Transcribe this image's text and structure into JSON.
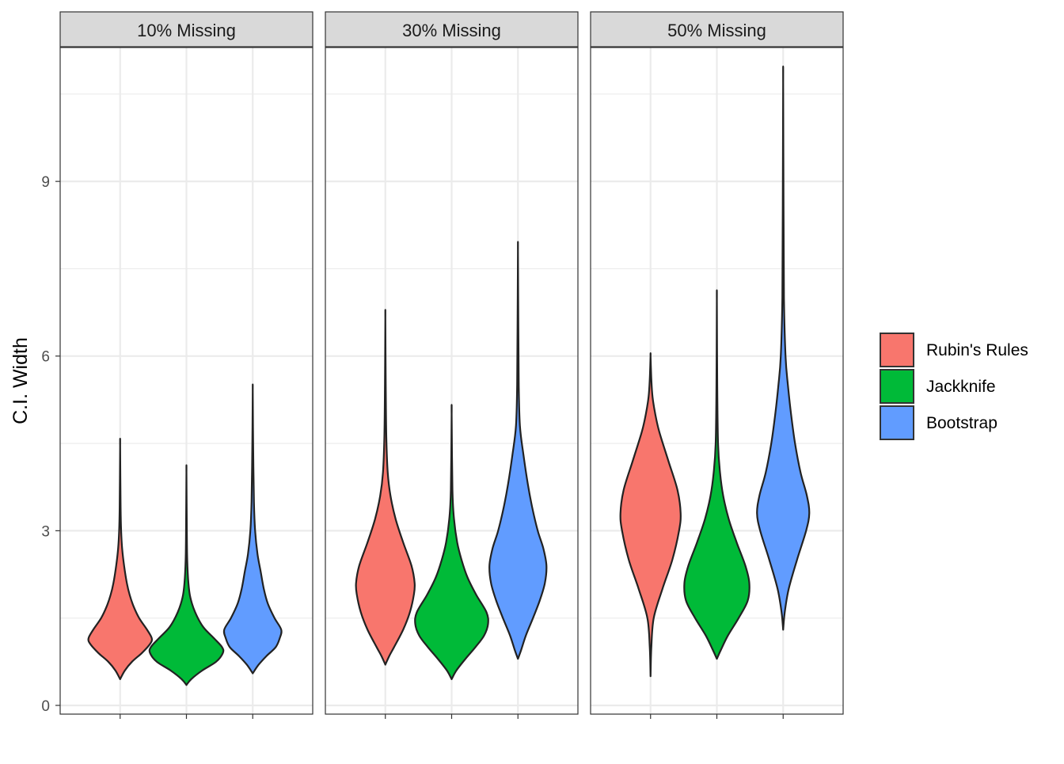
{
  "chart_data": {
    "type": "violin",
    "xlabel": "",
    "ylabel": "C.I. Width",
    "ylim": [
      -0.15,
      11.3
    ],
    "yticks": [
      0,
      3,
      6,
      9
    ],
    "grid": true,
    "legend_position": "right",
    "colors": {
      "Rubin's Rules": "#F8766D",
      "Jackknife": "#00BA38",
      "Bootstrap": "#619CFF"
    },
    "series": [
      {
        "name": "Rubin's Rules"
      },
      {
        "name": "Jackknife"
      },
      {
        "name": "Bootstrap"
      }
    ],
    "panels": [
      {
        "label": "10% Missing",
        "violins": [
          {
            "series": "Rubin's Rules",
            "min": 0.45,
            "max": 4.45,
            "profile": [
              [
                0.45,
                0
              ],
              [
                0.6,
                0.12
              ],
              [
                0.75,
                0.3
              ],
              [
                0.9,
                0.55
              ],
              [
                1.05,
                0.75
              ],
              [
                1.15,
                0.8
              ],
              [
                1.3,
                0.68
              ],
              [
                1.5,
                0.48
              ],
              [
                1.7,
                0.34
              ],
              [
                1.9,
                0.24
              ],
              [
                2.1,
                0.17
              ],
              [
                2.4,
                0.1
              ],
              [
                2.7,
                0.05
              ],
              [
                3.0,
                0.025
              ],
              [
                3.4,
                0.012
              ],
              [
                4.45,
                0
              ]
            ]
          },
          {
            "series": "Jackknife",
            "min": 0.35,
            "max": 4.0,
            "profile": [
              [
                0.35,
                0
              ],
              [
                0.45,
                0.12
              ],
              [
                0.6,
                0.4
              ],
              [
                0.75,
                0.75
              ],
              [
                0.9,
                0.92
              ],
              [
                1.0,
                0.9
              ],
              [
                1.15,
                0.7
              ],
              [
                1.35,
                0.42
              ],
              [
                1.6,
                0.22
              ],
              [
                1.85,
                0.1
              ],
              [
                2.1,
                0.05
              ],
              [
                2.5,
                0.02
              ],
              [
                3.0,
                0.01
              ],
              [
                4.0,
                0
              ]
            ]
          },
          {
            "series": "Bootstrap",
            "min": 0.55,
            "max": 5.4,
            "profile": [
              [
                0.55,
                0
              ],
              [
                0.7,
                0.15
              ],
              [
                0.85,
                0.35
              ],
              [
                1.0,
                0.58
              ],
              [
                1.15,
                0.68
              ],
              [
                1.3,
                0.72
              ],
              [
                1.5,
                0.55
              ],
              [
                1.75,
                0.38
              ],
              [
                2.0,
                0.28
              ],
              [
                2.3,
                0.2
              ],
              [
                2.6,
                0.12
              ],
              [
                3.0,
                0.06
              ],
              [
                3.5,
                0.03
              ],
              [
                4.5,
                0.01
              ],
              [
                5.4,
                0
              ]
            ]
          }
        ]
      },
      {
        "label": "30% Missing",
        "violins": [
          {
            "series": "Rubin's Rules",
            "min": 0.7,
            "max": 6.65,
            "profile": [
              [
                0.7,
                0
              ],
              [
                0.85,
                0.1
              ],
              [
                1.0,
                0.22
              ],
              [
                1.3,
                0.45
              ],
              [
                1.6,
                0.62
              ],
              [
                1.9,
                0.72
              ],
              [
                2.1,
                0.74
              ],
              [
                2.4,
                0.66
              ],
              [
                2.8,
                0.45
              ],
              [
                3.2,
                0.26
              ],
              [
                3.6,
                0.13
              ],
              [
                4.0,
                0.06
              ],
              [
                4.6,
                0.025
              ],
              [
                5.5,
                0.01
              ],
              [
                6.65,
                0
              ]
            ]
          },
          {
            "series": "Jackknife",
            "min": 0.45,
            "max": 5.0,
            "profile": [
              [
                0.45,
                0
              ],
              [
                0.6,
                0.12
              ],
              [
                0.8,
                0.35
              ],
              [
                1.0,
                0.6
              ],
              [
                1.2,
                0.82
              ],
              [
                1.4,
                0.92
              ],
              [
                1.6,
                0.88
              ],
              [
                1.9,
                0.62
              ],
              [
                2.2,
                0.4
              ],
              [
                2.5,
                0.25
              ],
              [
                2.8,
                0.14
              ],
              [
                3.2,
                0.06
              ],
              [
                3.7,
                0.02
              ],
              [
                5.0,
                0
              ]
            ]
          },
          {
            "series": "Bootstrap",
            "min": 0.8,
            "max": 7.8,
            "profile": [
              [
                0.8,
                0
              ],
              [
                0.95,
                0.08
              ],
              [
                1.2,
                0.2
              ],
              [
                1.5,
                0.38
              ],
              [
                1.8,
                0.55
              ],
              [
                2.1,
                0.68
              ],
              [
                2.4,
                0.72
              ],
              [
                2.7,
                0.64
              ],
              [
                3.0,
                0.5
              ],
              [
                3.4,
                0.36
              ],
              [
                3.8,
                0.25
              ],
              [
                4.3,
                0.14
              ],
              [
                4.8,
                0.05
              ],
              [
                5.5,
                0.02
              ],
              [
                6.5,
                0.01
              ],
              [
                7.8,
                0
              ]
            ]
          }
        ]
      },
      {
        "label": "50% Missing",
        "violins": [
          {
            "series": "Rubin's Rules",
            "min": 0.5,
            "max": 6.0,
            "profile": [
              [
                0.5,
                0
              ],
              [
                1.0,
                0.02
              ],
              [
                1.5,
                0.08
              ],
              [
                2.0,
                0.3
              ],
              [
                2.5,
                0.55
              ],
              [
                3.0,
                0.72
              ],
              [
                3.3,
                0.76
              ],
              [
                3.7,
                0.68
              ],
              [
                4.2,
                0.45
              ],
              [
                4.7,
                0.22
              ],
              [
                5.0,
                0.12
              ],
              [
                5.3,
                0.05
              ],
              [
                5.6,
                0.02
              ],
              [
                6.0,
                0
              ]
            ]
          },
          {
            "series": "Jackknife",
            "min": 0.8,
            "max": 6.95,
            "profile": [
              [
                0.8,
                0
              ],
              [
                0.95,
                0.1
              ],
              [
                1.2,
                0.28
              ],
              [
                1.5,
                0.55
              ],
              [
                1.8,
                0.78
              ],
              [
                2.1,
                0.82
              ],
              [
                2.4,
                0.72
              ],
              [
                2.8,
                0.5
              ],
              [
                3.2,
                0.3
              ],
              [
                3.6,
                0.16
              ],
              [
                4.0,
                0.08
              ],
              [
                4.5,
                0.03
              ],
              [
                5.5,
                0.01
              ],
              [
                6.95,
                0
              ]
            ]
          },
          {
            "series": "Bootstrap",
            "min": 1.3,
            "max": 10.7,
            "profile": [
              [
                1.3,
                0
              ],
              [
                1.6,
                0.04
              ],
              [
                2.0,
                0.14
              ],
              [
                2.5,
                0.35
              ],
              [
                3.0,
                0.58
              ],
              [
                3.3,
                0.66
              ],
              [
                3.6,
                0.6
              ],
              [
                4.0,
                0.44
              ],
              [
                4.5,
                0.3
              ],
              [
                5.0,
                0.2
              ],
              [
                5.5,
                0.12
              ],
              [
                6.0,
                0.06
              ],
              [
                7.0,
                0.02
              ],
              [
                8.5,
                0.01
              ],
              [
                10.7,
                0
              ]
            ]
          }
        ]
      }
    ]
  }
}
